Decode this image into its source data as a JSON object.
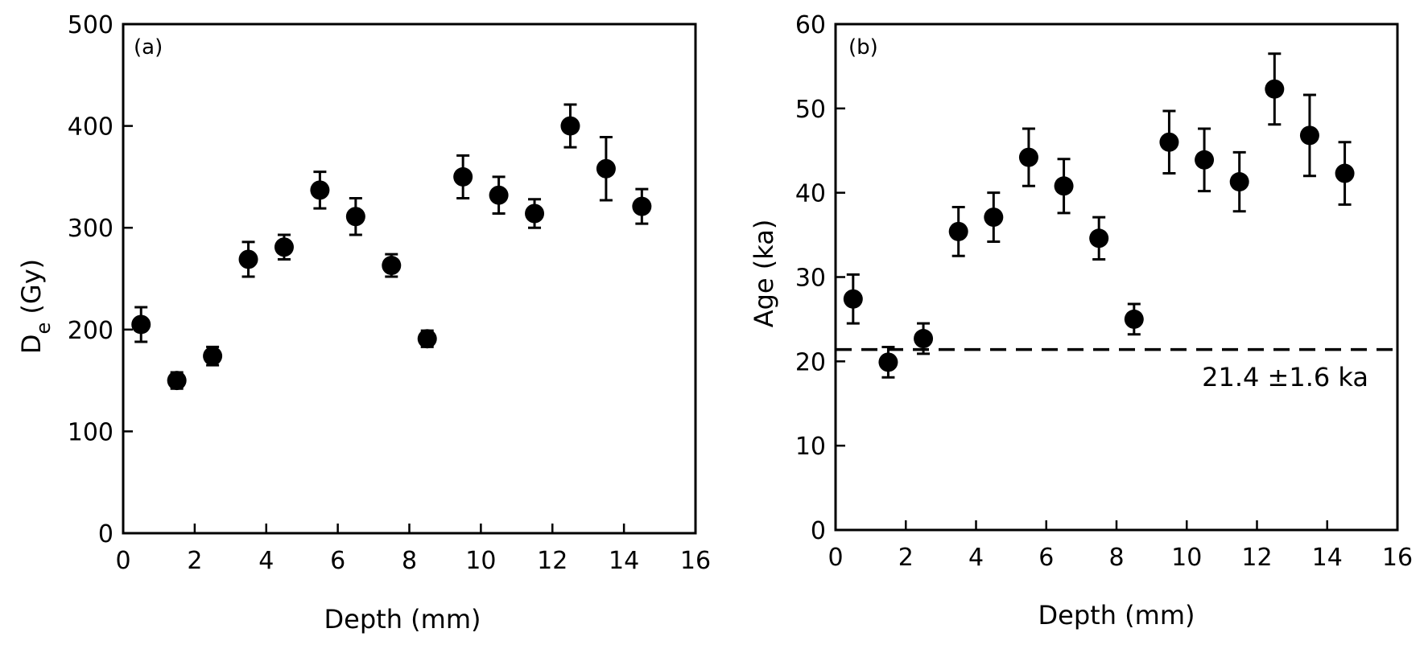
{
  "chart_data": [
    {
      "type": "scatter",
      "panel_label": "(a)",
      "xlabel": "Depth (mm)",
      "ylabel_main": "D",
      "ylabel_sub": "e",
      "ylabel_rest": " (Gy)",
      "xlim": [
        0,
        16
      ],
      "ylim": [
        0,
        500
      ],
      "x_ticks": [
        0,
        2,
        4,
        6,
        8,
        10,
        12,
        14,
        16
      ],
      "y_ticks": [
        0,
        100,
        200,
        300,
        400,
        500
      ],
      "marker_color": "#000000",
      "points": [
        {
          "x": 0.5,
          "y": 205,
          "err": 17
        },
        {
          "x": 1.5,
          "y": 150,
          "err": 8
        },
        {
          "x": 2.5,
          "y": 174,
          "err": 9
        },
        {
          "x": 3.5,
          "y": 269,
          "err": 17
        },
        {
          "x": 4.5,
          "y": 281,
          "err": 12
        },
        {
          "x": 5.5,
          "y": 337,
          "err": 18
        },
        {
          "x": 6.5,
          "y": 311,
          "err": 18
        },
        {
          "x": 7.5,
          "y": 263,
          "err": 11
        },
        {
          "x": 8.5,
          "y": 191,
          "err": 8
        },
        {
          "x": 9.5,
          "y": 350,
          "err": 21
        },
        {
          "x": 10.5,
          "y": 332,
          "err": 18
        },
        {
          "x": 11.5,
          "y": 314,
          "err": 14
        },
        {
          "x": 12.5,
          "y": 400,
          "err": 21
        },
        {
          "x": 13.5,
          "y": 358,
          "err": 31
        },
        {
          "x": 14.5,
          "y": 321,
          "err": 17
        }
      ]
    },
    {
      "type": "scatter",
      "panel_label": "(b)",
      "xlabel": "Depth (mm)",
      "ylabel": "Age (ka)",
      "xlim": [
        0,
        16
      ],
      "ylim": [
        0,
        60
      ],
      "x_ticks": [
        0,
        2,
        4,
        6,
        8,
        10,
        12,
        14,
        16
      ],
      "y_ticks": [
        0,
        10,
        20,
        30,
        40,
        50,
        60
      ],
      "marker_color": "#000000",
      "reference_line": {
        "y": 21.4,
        "style": "dashed"
      },
      "annotation": "21.4 ±1.6 ka",
      "points": [
        {
          "x": 0.5,
          "y": 27.4,
          "err": 2.9
        },
        {
          "x": 1.5,
          "y": 19.9,
          "err": 1.8
        },
        {
          "x": 2.5,
          "y": 22.7,
          "err": 1.8
        },
        {
          "x": 3.5,
          "y": 35.4,
          "err": 2.9
        },
        {
          "x": 4.5,
          "y": 37.1,
          "err": 2.9
        },
        {
          "x": 5.5,
          "y": 44.2,
          "err": 3.4
        },
        {
          "x": 6.5,
          "y": 40.8,
          "err": 3.2
        },
        {
          "x": 7.5,
          "y": 34.6,
          "err": 2.5
        },
        {
          "x": 8.5,
          "y": 25.0,
          "err": 1.8
        },
        {
          "x": 9.5,
          "y": 46.0,
          "err": 3.7
        },
        {
          "x": 10.5,
          "y": 43.9,
          "err": 3.7
        },
        {
          "x": 11.5,
          "y": 41.3,
          "err": 3.5
        },
        {
          "x": 12.5,
          "y": 52.3,
          "err": 4.2
        },
        {
          "x": 13.5,
          "y": 46.8,
          "err": 4.8
        },
        {
          "x": 14.5,
          "y": 42.3,
          "err": 3.7
        }
      ]
    }
  ]
}
